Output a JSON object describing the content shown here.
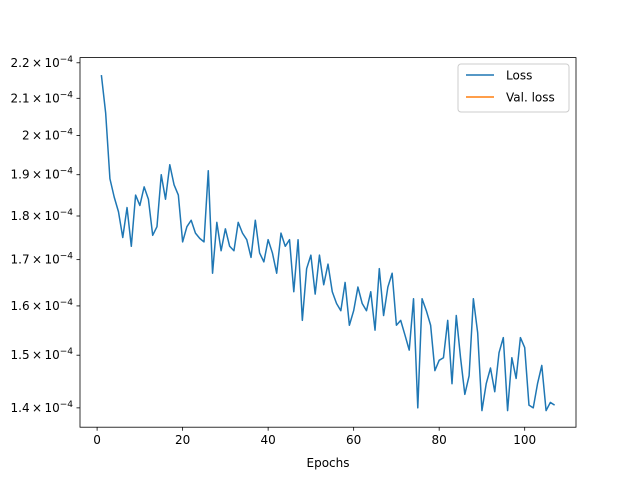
{
  "chart_data": {
    "type": "line",
    "title": "",
    "xlabel": "Epochs",
    "ylabel": "",
    "xlim": [
      -4,
      112
    ],
    "ylim": [
      0.0001365,
      0.0002215
    ],
    "yscale": "log",
    "grid": false,
    "legend_position": "top-right",
    "x_ticks": [
      0,
      20,
      40,
      60,
      80,
      100
    ],
    "y_ticks": [
      {
        "value": 0.00014,
        "mantissa": "1.4",
        "exponent": "-4"
      },
      {
        "value": 0.00015,
        "mantissa": "1.5",
        "exponent": "-4"
      },
      {
        "value": 0.00016,
        "mantissa": "1.6",
        "exponent": "-4"
      },
      {
        "value": 0.00017,
        "mantissa": "1.7",
        "exponent": "-4"
      },
      {
        "value": 0.00018,
        "mantissa": "1.8",
        "exponent": "-4"
      },
      {
        "value": 0.00019,
        "mantissa": "1.9",
        "exponent": "-4"
      },
      {
        "value": 0.0002,
        "mantissa": "2",
        "exponent": "-4"
      },
      {
        "value": 0.00021,
        "mantissa": "2.1",
        "exponent": "-4"
      },
      {
        "value": 0.00022,
        "mantissa": "2.2",
        "exponent": "-4"
      }
    ],
    "tick_base": "10",
    "times_sign": "×",
    "series": [
      {
        "name": "Loss",
        "color": "#1f77b4",
        "x": [
          1,
          2,
          3,
          4,
          5,
          6,
          7,
          8,
          9,
          10,
          11,
          12,
          13,
          14,
          15,
          16,
          17,
          18,
          19,
          20,
          21,
          22,
          23,
          24,
          25,
          26,
          27,
          28,
          29,
          30,
          31,
          32,
          33,
          34,
          35,
          36,
          37,
          38,
          39,
          40,
          41,
          42,
          43,
          44,
          45,
          46,
          47,
          48,
          49,
          50,
          51,
          52,
          53,
          54,
          55,
          56,
          57,
          58,
          59,
          60,
          61,
          62,
          63,
          64,
          65,
          66,
          67,
          68,
          69,
          70,
          71,
          72,
          73,
          74,
          75,
          76,
          77,
          78,
          79,
          80,
          81,
          82,
          83,
          84,
          85,
          86,
          87,
          88,
          89,
          90,
          91,
          92,
          93,
          94,
          95,
          96,
          97,
          98,
          99,
          100,
          101,
          102,
          103,
          104,
          105,
          106,
          107
        ],
        "y": [
          0.0002165,
          0.000206,
          0.000189,
          0.0001845,
          0.000181,
          0.000175,
          0.000182,
          0.000173,
          0.000185,
          0.0001825,
          0.000187,
          0.000184,
          0.0001755,
          0.0001775,
          0.00019,
          0.000184,
          0.0001925,
          0.0001875,
          0.000185,
          0.000174,
          0.0001775,
          0.000179,
          0.000176,
          0.0001748,
          0.000174,
          0.000191,
          0.000167,
          0.0001785,
          0.000172,
          0.000177,
          0.000173,
          0.000172,
          0.0001785,
          0.000176,
          0.0001745,
          0.0001705,
          0.000179,
          0.0001715,
          0.0001695,
          0.0001745,
          0.0001715,
          0.000167,
          0.000176,
          0.000173,
          0.0001745,
          0.000163,
          0.0001745,
          0.000157,
          0.000168,
          0.000171,
          0.0001625,
          0.000171,
          0.0001645,
          0.000169,
          0.000163,
          0.0001605,
          0.000159,
          0.000165,
          0.000156,
          0.000159,
          0.000164,
          0.0001605,
          0.000159,
          0.000163,
          0.000155,
          0.000168,
          0.000158,
          0.000164,
          0.000167,
          0.000156,
          0.000157,
          0.000154,
          0.000151,
          0.0001615,
          0.00014,
          0.0001615,
          0.000159,
          0.000156,
          0.000147,
          0.000149,
          0.0001495,
          0.000157,
          0.0001445,
          0.000158,
          0.0001495,
          0.0001425,
          0.000146,
          0.0001615,
          0.0001545,
          0.0001395,
          0.0001445,
          0.0001475,
          0.000143,
          0.0001505,
          0.0001535,
          0.0001395,
          0.0001495,
          0.0001455,
          0.0001535,
          0.0001515,
          0.0001405,
          0.00014,
          0.0001445,
          0.000148,
          0.0001395,
          0.000141,
          0.0001405
        ]
      },
      {
        "name": "Val. loss",
        "color": "#ff7f0e",
        "x": [],
        "y": []
      }
    ]
  }
}
